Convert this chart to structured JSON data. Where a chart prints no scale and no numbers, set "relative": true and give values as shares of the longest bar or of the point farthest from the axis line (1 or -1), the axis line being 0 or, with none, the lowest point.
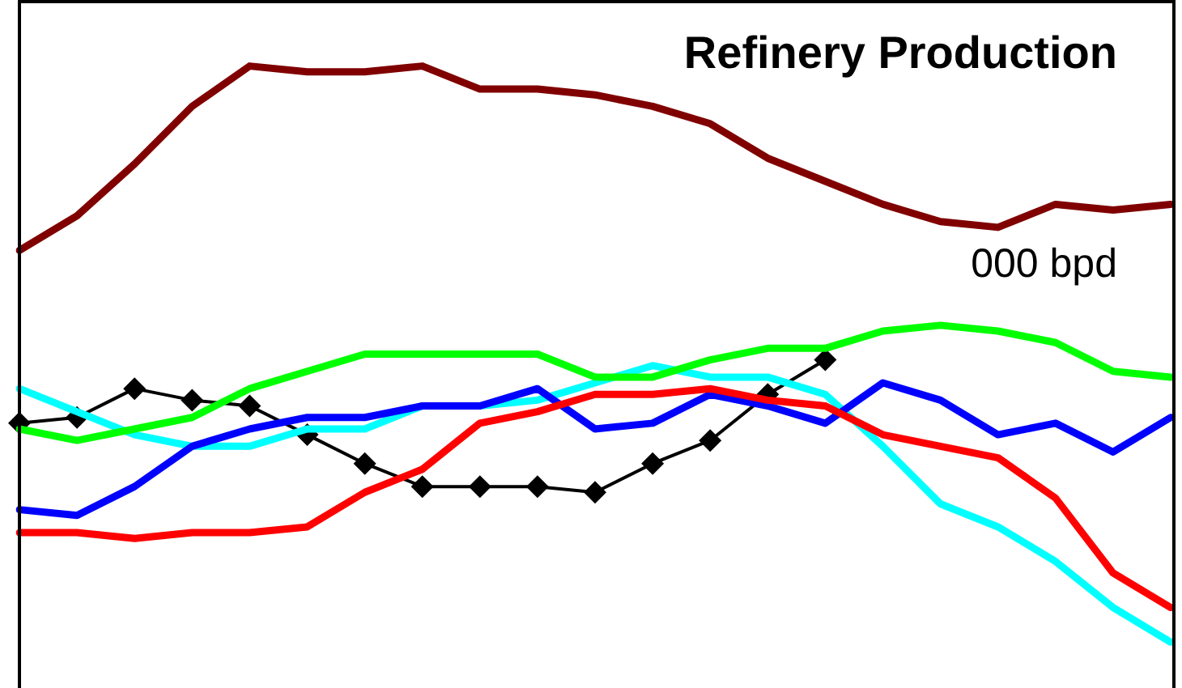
{
  "chart_data": {
    "type": "line",
    "title": "Refinery Production",
    "annotations": [
      "000 bpd"
    ],
    "relative": true,
    "marker": "none",
    "categories": [
      null,
      null,
      null,
      null,
      null,
      null,
      null,
      null,
      null,
      null,
      null,
      null,
      null,
      null,
      null,
      null,
      null,
      null,
      null,
      null,
      null
    ],
    "series": [
      {
        "color": "#800000",
        "values": [
          0.68,
          0.74,
          0.83,
          0.93,
          1,
          0.99,
          0.99,
          1,
          0.96,
          0.96,
          0.95,
          0.93,
          0.9,
          0.84,
          0.8,
          0.76,
          0.73,
          0.72,
          0.76,
          0.75,
          0.76
        ]
      },
      {
        "color": "#00ff00",
        "values": [
          0.37,
          0.35,
          0.37,
          0.39,
          0.44,
          0.47,
          0.5,
          0.5,
          0.5,
          0.5,
          0.46,
          0.46,
          0.49,
          0.51,
          0.51,
          0.54,
          0.55,
          0.54,
          0.52,
          0.47,
          0.46
        ]
      },
      {
        "color": "#ff0000",
        "values": [
          0.19,
          0.19,
          0.18,
          0.19,
          0.19,
          0.2,
          0.26,
          0.3,
          0.38,
          0.4,
          0.43,
          0.43,
          0.44,
          0.42,
          0.41,
          0.36,
          0.34,
          0.32,
          0.25,
          0.12,
          0.06
        ]
      },
      {
        "color": "#0000ff",
        "values": [
          0.23,
          0.22,
          0.27,
          0.34,
          0.37,
          0.39,
          0.39,
          0.41,
          0.41,
          0.44,
          0.37,
          0.38,
          0.43,
          0.41,
          0.38,
          0.45,
          0.42,
          0.36,
          0.38,
          0.33,
          0.39
        ]
      },
      {
        "color": "#00ffff",
        "values": [
          0.44,
          0.4,
          0.36,
          0.34,
          0.34,
          0.37,
          0.37,
          0.41,
          0.41,
          0.42,
          0.45,
          0.48,
          0.46,
          0.46,
          0.43,
          0.34,
          0.24,
          0.2,
          0.14,
          0.06,
          0
        ]
      },
      {
        "color": "#000000",
        "marker": "diamond",
        "values": [
          0.38,
          0.39,
          0.44,
          0.42,
          0.41,
          0.36,
          0.31,
          0.27,
          0.27,
          0.27,
          0.26,
          0.31,
          0.35,
          0.43,
          0.49,
          null,
          null,
          null,
          null,
          null,
          null
        ]
      }
    ]
  }
}
